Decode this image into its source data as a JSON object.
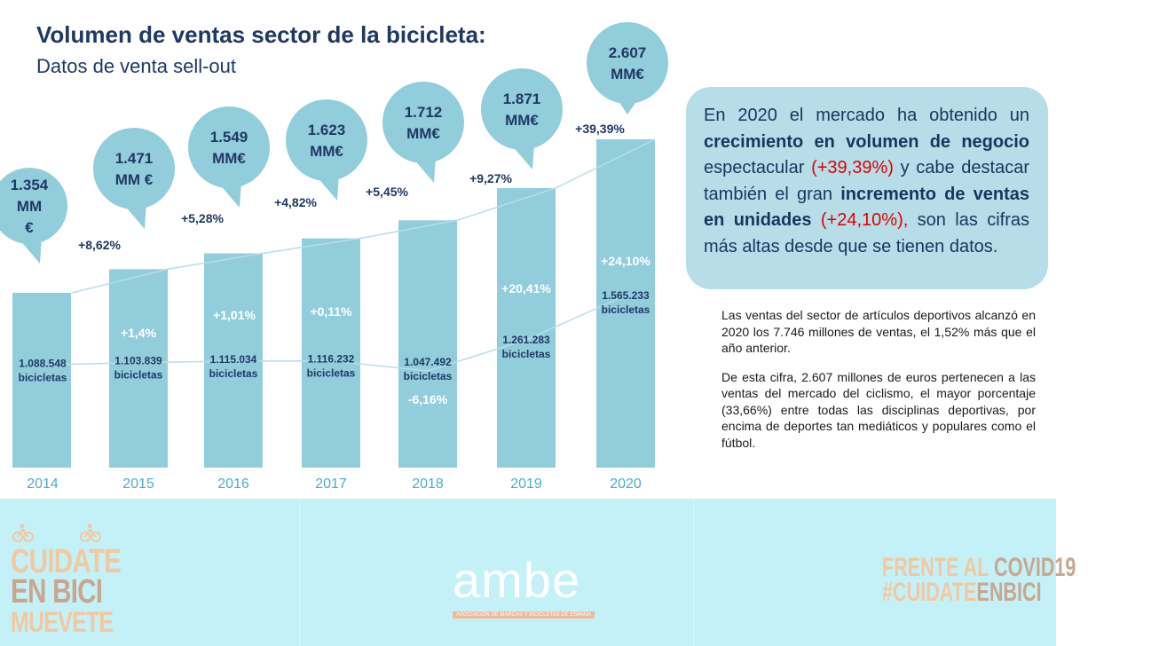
{
  "title": "Volumen de ventas sector de la bicicleta:",
  "subtitle": "Datos de venta sell-out",
  "chart_data": {
    "type": "bar",
    "categories": [
      "2014",
      "2015",
      "2016",
      "2017",
      "2018",
      "2019",
      "2020"
    ],
    "series": [
      {
        "values": [
          1354,
          1471,
          1549,
          1623,
          1712,
          1871,
          2607
        ]
      },
      {
        "values": [
          1088548,
          1103839,
          1115034,
          1116232,
          1047492,
          1261283,
          1565233
        ]
      }
    ],
    "value_labels": [
      [
        "1.354",
        "MM",
        "€"
      ],
      [
        "1.471",
        "MM €"
      ],
      [
        "1.549",
        "MM€"
      ],
      [
        "1.623",
        "MM€"
      ],
      [
        "1.712",
        "MM€"
      ],
      [
        "1.871",
        "MM€"
      ],
      [
        "2.607",
        "MM€"
      ]
    ],
    "value_growth": [
      "",
      "+8,62%",
      "+5,28%",
      "+4,82%",
      "+5,45%",
      "+9,27%",
      "+39,39%"
    ],
    "unit_labels": [
      "1.088.548",
      "1.103.839",
      "1.115.034",
      "1.116.232",
      "1.047.492",
      "1.261.283",
      "1.565.233"
    ],
    "unit_suffix": "bicicletas",
    "unit_growth": [
      "",
      "+1,4%",
      "+1,01%",
      "+0,11%",
      "-6,16%",
      "+20,41%",
      "+24,10%"
    ]
  },
  "callout": {
    "t1": "En 2020 el mercado ha obtenido un ",
    "b1": "crecimiento en volumen de negocio",
    "t2": " espectacular ",
    "r1": "(+39,39%)",
    "t3": " y cabe destacar también el gran ",
    "b2": "incremento de ventas en unidades",
    "t4": " ",
    "r2": "(+24,10%),",
    "t5": " son las cifras más altas desde que se tienen datos."
  },
  "notes": {
    "p1": "Las ventas del sector de artículos deportivos alcanzó en 2020 los 7.746 millones de ventas, el 1,52% más que el año anterior.",
    "p2": "De esta cifra, 2.607 millones de euros pertenecen a las ventas del mercado del ciclismo, el mayor porcentaje (33,66%) entre todas las disciplinas deportivas, por encima de deportes tan mediáticos y populares como el fútbol."
  },
  "footer": {
    "left_logo": [
      "CUIDATE",
      "EN BICI",
      "MUEVETE"
    ],
    "center_logo": "ambe",
    "center_sub": "ASOCIACIÓN DE MARCAS Y BICICLETAS DE ESPAÑA",
    "right_logo_1a": "FRENTE AL ",
    "right_logo_1b": "COVID19",
    "right_logo_2a": "#CUIDATE",
    "right_logo_2b": "ENBICI"
  },
  "colors": {
    "bar": "#92cddc",
    "title": "#1f3864",
    "year": "#4bacc6",
    "callout_bg": "#b7dde8",
    "highlight": "#e00000",
    "footer_bg": "#c4f1f8"
  }
}
